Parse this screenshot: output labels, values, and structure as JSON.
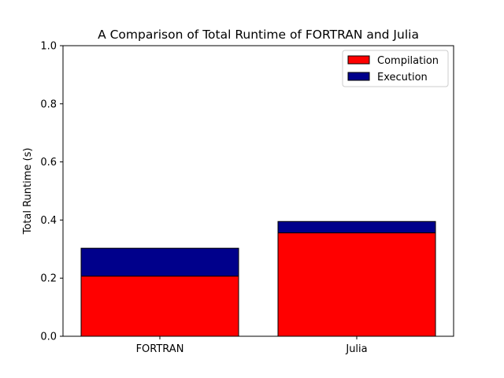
{
  "chart_data": {
    "type": "bar",
    "stacked": true,
    "title": "A Comparison of Total Runtime of FORTRAN and Julia",
    "xlabel": "",
    "ylabel": "Total Runtime (s)",
    "categories": [
      "FORTRAN",
      "Julia"
    ],
    "series": [
      {
        "name": "Compilation",
        "values": [
          0.207,
          0.356
        ],
        "color": "#ff0000"
      },
      {
        "name": "Execution",
        "values": [
          0.096,
          0.039
        ],
        "color": "#00008b"
      }
    ],
    "ylim": [
      0,
      1.0
    ],
    "yticks": [
      "0.0",
      "0.2",
      "0.4",
      "0.6",
      "0.8",
      "1.0"
    ],
    "grid": false,
    "legend_position": "top-right"
  }
}
